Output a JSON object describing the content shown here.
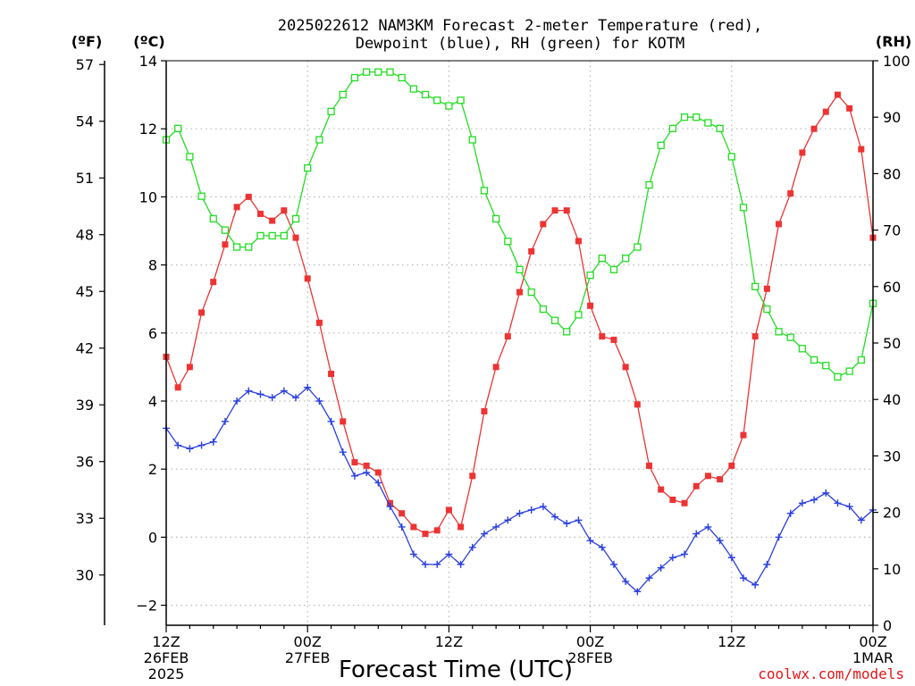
{
  "chart_data": {
    "type": "line",
    "title_lines": [
      "2025022612 NAM3KM Forecast 2-meter Temperature (red),",
      "Dewpoint (blue), RH (green) for KOTM"
    ],
    "xlabel": "Forecast Time (UTC)",
    "credit": "coolwx.com/models",
    "units": {
      "f": "(ºF)",
      "c": "(ºC)",
      "rh": "(RH)"
    },
    "x_hours": [
      0,
      1,
      2,
      3,
      4,
      5,
      6,
      7,
      8,
      9,
      10,
      11,
      12,
      13,
      14,
      15,
      16,
      17,
      18,
      19,
      20,
      21,
      22,
      23,
      24,
      25,
      26,
      27,
      28,
      29,
      30,
      31,
      32,
      33,
      34,
      35,
      36,
      37,
      38,
      39,
      40,
      41,
      42,
      43,
      44,
      45,
      46,
      47,
      48,
      49,
      50,
      51,
      52,
      53,
      54,
      55,
      56,
      57,
      58,
      59,
      60
    ],
    "x_ticks": [
      {
        "hour": 0,
        "lines": [
          "12Z",
          "26FEB",
          "2025"
        ]
      },
      {
        "hour": 12,
        "lines": [
          "00Z",
          "27FEB"
        ]
      },
      {
        "hour": 24,
        "lines": [
          "12Z"
        ]
      },
      {
        "hour": 36,
        "lines": [
          "00Z",
          "28FEB"
        ]
      },
      {
        "hour": 48,
        "lines": [
          "12Z"
        ]
      },
      {
        "hour": 60,
        "lines": [
          "00Z",
          "1MAR"
        ]
      }
    ],
    "y_left_c": {
      "ylim": [
        -2.6,
        14
      ],
      "ticks": [
        -2,
        0,
        2,
        4,
        6,
        8,
        10,
        12,
        14
      ]
    },
    "y_left_f": {
      "ticks": [
        30,
        33,
        36,
        39,
        42,
        45,
        48,
        51,
        54,
        57
      ]
    },
    "y_right_rh": {
      "ylim": [
        0,
        100
      ],
      "ticks": [
        0,
        10,
        20,
        30,
        40,
        50,
        60,
        70,
        80,
        90,
        100
      ]
    },
    "grid": true,
    "series": [
      {
        "name": "Temperature",
        "axis": "c",
        "color": "#ee3333",
        "marker": "filled-square",
        "values": [
          5.3,
          4.4,
          5.0,
          6.6,
          7.5,
          8.6,
          9.7,
          10.0,
          9.5,
          9.3,
          9.6,
          8.8,
          7.6,
          6.3,
          4.8,
          3.4,
          2.2,
          2.1,
          1.9,
          1.0,
          0.7,
          0.3,
          0.1,
          0.2,
          0.8,
          0.3,
          1.8,
          3.7,
          5.0,
          5.9,
          7.2,
          8.4,
          9.2,
          9.6,
          9.6,
          8.7,
          6.8,
          5.9,
          5.8,
          5.0,
          3.9,
          2.1,
          1.4,
          1.1,
          1.0,
          1.5,
          1.8,
          1.7,
          2.1,
          3.0,
          5.9,
          7.3,
          9.2,
          10.1,
          11.3,
          12.0,
          12.5,
          13.0,
          12.6,
          11.4,
          8.8
        ]
      },
      {
        "name": "Dewpoint",
        "axis": "c",
        "color": "#2a3fe0",
        "marker": "plus",
        "values": [
          3.2,
          2.7,
          2.6,
          2.7,
          2.8,
          3.4,
          4.0,
          4.3,
          4.2,
          4.1,
          4.3,
          4.1,
          4.4,
          4.0,
          3.4,
          2.5,
          1.8,
          1.9,
          1.6,
          0.9,
          0.3,
          -0.5,
          -0.8,
          -0.8,
          -0.5,
          -0.8,
          -0.3,
          0.1,
          0.3,
          0.5,
          0.7,
          0.8,
          0.9,
          0.6,
          0.4,
          0.5,
          -0.1,
          -0.3,
          -0.8,
          -1.3,
          -1.6,
          -1.2,
          -0.9,
          -0.6,
          -0.5,
          0.1,
          0.3,
          -0.1,
          -0.6,
          -1.2,
          -1.4,
          -0.8,
          0.0,
          0.7,
          1.0,
          1.1,
          1.3,
          1.0,
          0.9,
          0.5,
          0.8
        ]
      },
      {
        "name": "RH",
        "axis": "rh",
        "color": "#22dd22",
        "marker": "open-square",
        "values": [
          86,
          88,
          83,
          76,
          72,
          70,
          67,
          67,
          69,
          69,
          69,
          72,
          81,
          86,
          91,
          94,
          97,
          98,
          98,
          98,
          97,
          95,
          94,
          93,
          92,
          93,
          86,
          77,
          72,
          68,
          63,
          59,
          56,
          54,
          52,
          55,
          62,
          65,
          63,
          65,
          67,
          78,
          85,
          88,
          90,
          90,
          89,
          88,
          83,
          74,
          60,
          56,
          52,
          51,
          49,
          47,
          46,
          44,
          45,
          47,
          57
        ]
      }
    ]
  }
}
